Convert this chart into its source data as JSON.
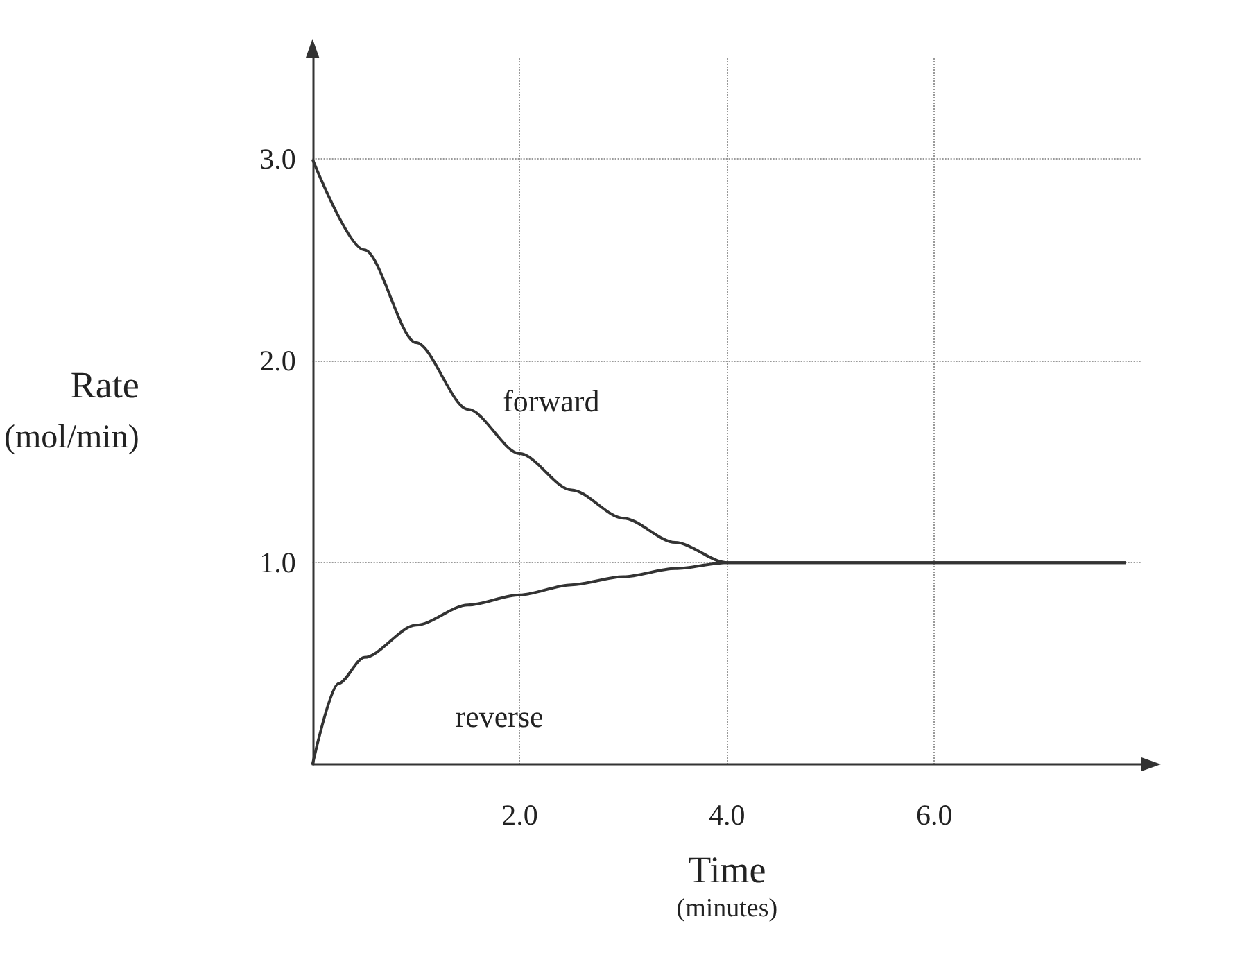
{
  "chart_data": {
    "type": "line",
    "xlabel": "Time\n(minutes)",
    "ylabel": "Rate\n(mol/min)",
    "xlim": [
      0,
      8
    ],
    "ylim": [
      0,
      3.5
    ],
    "xticks": [
      {
        "value": 2,
        "label": "2.0"
      },
      {
        "value": 4,
        "label": "4.0"
      },
      {
        "value": 6,
        "label": "6.0"
      }
    ],
    "yticks": [
      {
        "value": 1,
        "label": "1.0"
      },
      {
        "value": 2,
        "label": "2.0"
      },
      {
        "value": 3,
        "label": "3.0"
      }
    ],
    "grid": true,
    "marker": "none",
    "line_style": "solid",
    "series": [
      {
        "name": "forward",
        "color": "#333333",
        "x": [
          0,
          0.5,
          1,
          1.5,
          2,
          2.5,
          3,
          3.5,
          4,
          7.85
        ],
        "values": [
          3,
          2.55,
          2.09,
          1.76,
          1.54,
          1.36,
          1.22,
          1.1,
          1,
          1
        ]
      },
      {
        "name": "reverse",
        "color": "#333333",
        "x": [
          0,
          0.25,
          0.5,
          1,
          1.5,
          2,
          2.5,
          3,
          3.5,
          4,
          7.85
        ],
        "values": [
          0,
          0.4,
          0.53,
          0.69,
          0.79,
          0.84,
          0.89,
          0.93,
          0.97,
          1,
          1
        ]
      }
    ]
  }
}
